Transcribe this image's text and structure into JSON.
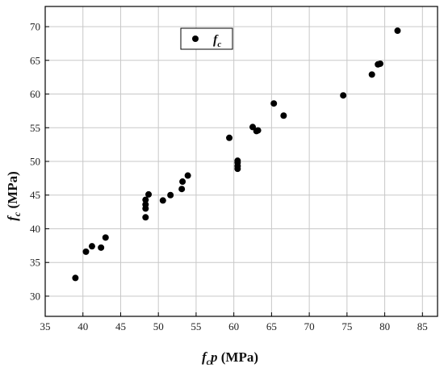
{
  "chart_data": {
    "type": "scatter",
    "title": "",
    "xlabel": {
      "main": "f",
      "sub": "c",
      "tail": "p",
      "unit": " (MPa)"
    },
    "ylabel": {
      "main": "f",
      "sub": "c",
      "unit": " (MPa)"
    },
    "xlim": [
      35,
      87
    ],
    "ylim": [
      27,
      73
    ],
    "xticks": [
      35,
      40,
      45,
      50,
      55,
      60,
      65,
      70,
      75,
      80,
      85
    ],
    "yticks": [
      30,
      35,
      40,
      45,
      50,
      55,
      60,
      65,
      70
    ],
    "grid": true,
    "legend": {
      "position": "top-left",
      "label_main": "f",
      "label_sub": "c"
    },
    "marker_color": "#000000",
    "series": [
      {
        "name": "fc",
        "points": [
          [
            39.0,
            32.7
          ],
          [
            40.4,
            36.6
          ],
          [
            41.2,
            37.4
          ],
          [
            42.4,
            37.2
          ],
          [
            43.0,
            38.7
          ],
          [
            48.3,
            41.7
          ],
          [
            48.3,
            43.0
          ],
          [
            48.3,
            43.6
          ],
          [
            48.3,
            44.3
          ],
          [
            48.7,
            45.1
          ],
          [
            50.6,
            44.2
          ],
          [
            51.6,
            45.0
          ],
          [
            53.1,
            45.9
          ],
          [
            53.2,
            47.0
          ],
          [
            53.9,
            47.9
          ],
          [
            59.4,
            53.5
          ],
          [
            60.5,
            48.9
          ],
          [
            60.5,
            49.3
          ],
          [
            60.5,
            49.8
          ],
          [
            60.5,
            50.1
          ],
          [
            62.5,
            55.1
          ],
          [
            63.0,
            54.5
          ],
          [
            63.2,
            54.6
          ],
          [
            65.3,
            58.6
          ],
          [
            66.6,
            56.8
          ],
          [
            74.5,
            59.8
          ],
          [
            78.3,
            62.9
          ],
          [
            79.1,
            64.4
          ],
          [
            79.4,
            64.5
          ],
          [
            81.7,
            69.4
          ]
        ]
      }
    ]
  }
}
